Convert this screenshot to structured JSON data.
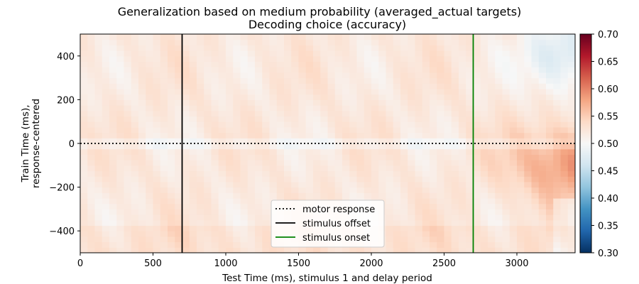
{
  "chart_data": {
    "type": "heatmap",
    "title": "Generalization based on medium probability (averaged_actual targets)",
    "subtitle": "Decoding choice (accuracy)",
    "xlabel": "Test Time (ms), stimulus 1 and delay period",
    "ylabel_lines": [
      "Train Time (ms),",
      "response-centered"
    ],
    "xlim": [
      0,
      3400
    ],
    "ylim": [
      -500,
      500
    ],
    "x_ticks": [
      0,
      500,
      1000,
      1500,
      2000,
      2500,
      3000
    ],
    "x_tick_labels": [
      "0",
      "500",
      "1000",
      "1500",
      "2000",
      "2500",
      "3000"
    ],
    "y_ticks": [
      400,
      200,
      0,
      -200,
      -400
    ],
    "y_tick_labels": [
      "400",
      "200",
      "0",
      "−200",
      "−400"
    ],
    "colormap": "RdBu_r",
    "colorbar": {
      "range": [
        0.3,
        0.7
      ],
      "ticks": [
        0.3,
        0.35,
        0.4,
        0.45,
        0.5,
        0.55,
        0.6,
        0.65,
        0.7
      ],
      "tick_labels": [
        "0.30",
        "0.35",
        "0.40",
        "0.45",
        "0.50",
        "0.55",
        "0.60",
        "0.65",
        "0.70"
      ],
      "colors": [
        "#053061",
        "#2166ac",
        "#4393c3",
        "#92c5de",
        "#d1e5f0",
        "#f7f7f7",
        "#fddbc7",
        "#f4a582",
        "#d6604d",
        "#b2182b",
        "#67001f"
      ]
    },
    "matrix_description_regions": [
      {
        "x": [
          0,
          2700
        ],
        "y": [
          -500,
          500
        ],
        "value": 0.525
      },
      {
        "x": [
          2700,
          3400
        ],
        "y": [
          -300,
          100
        ],
        "value": 0.57
      },
      {
        "x": [
          3100,
          3400
        ],
        "y": [
          200,
          500
        ],
        "value": 0.48
      }
    ],
    "reference_lines": [
      {
        "label": "motor response",
        "orientation": "horizontal",
        "at": 0,
        "style": "dotted",
        "color": "#000000"
      },
      {
        "label": "stimulus offset",
        "orientation": "vertical",
        "at": 700,
        "style": "solid",
        "color": "#000000"
      },
      {
        "label": "stimulus onset",
        "orientation": "vertical",
        "at": 2700,
        "style": "solid",
        "color": "#008000"
      }
    ],
    "legend": {
      "position": "lower-center",
      "entries": [
        "motor response",
        "stimulus offset",
        "stimulus onset"
      ]
    },
    "grid": false
  }
}
